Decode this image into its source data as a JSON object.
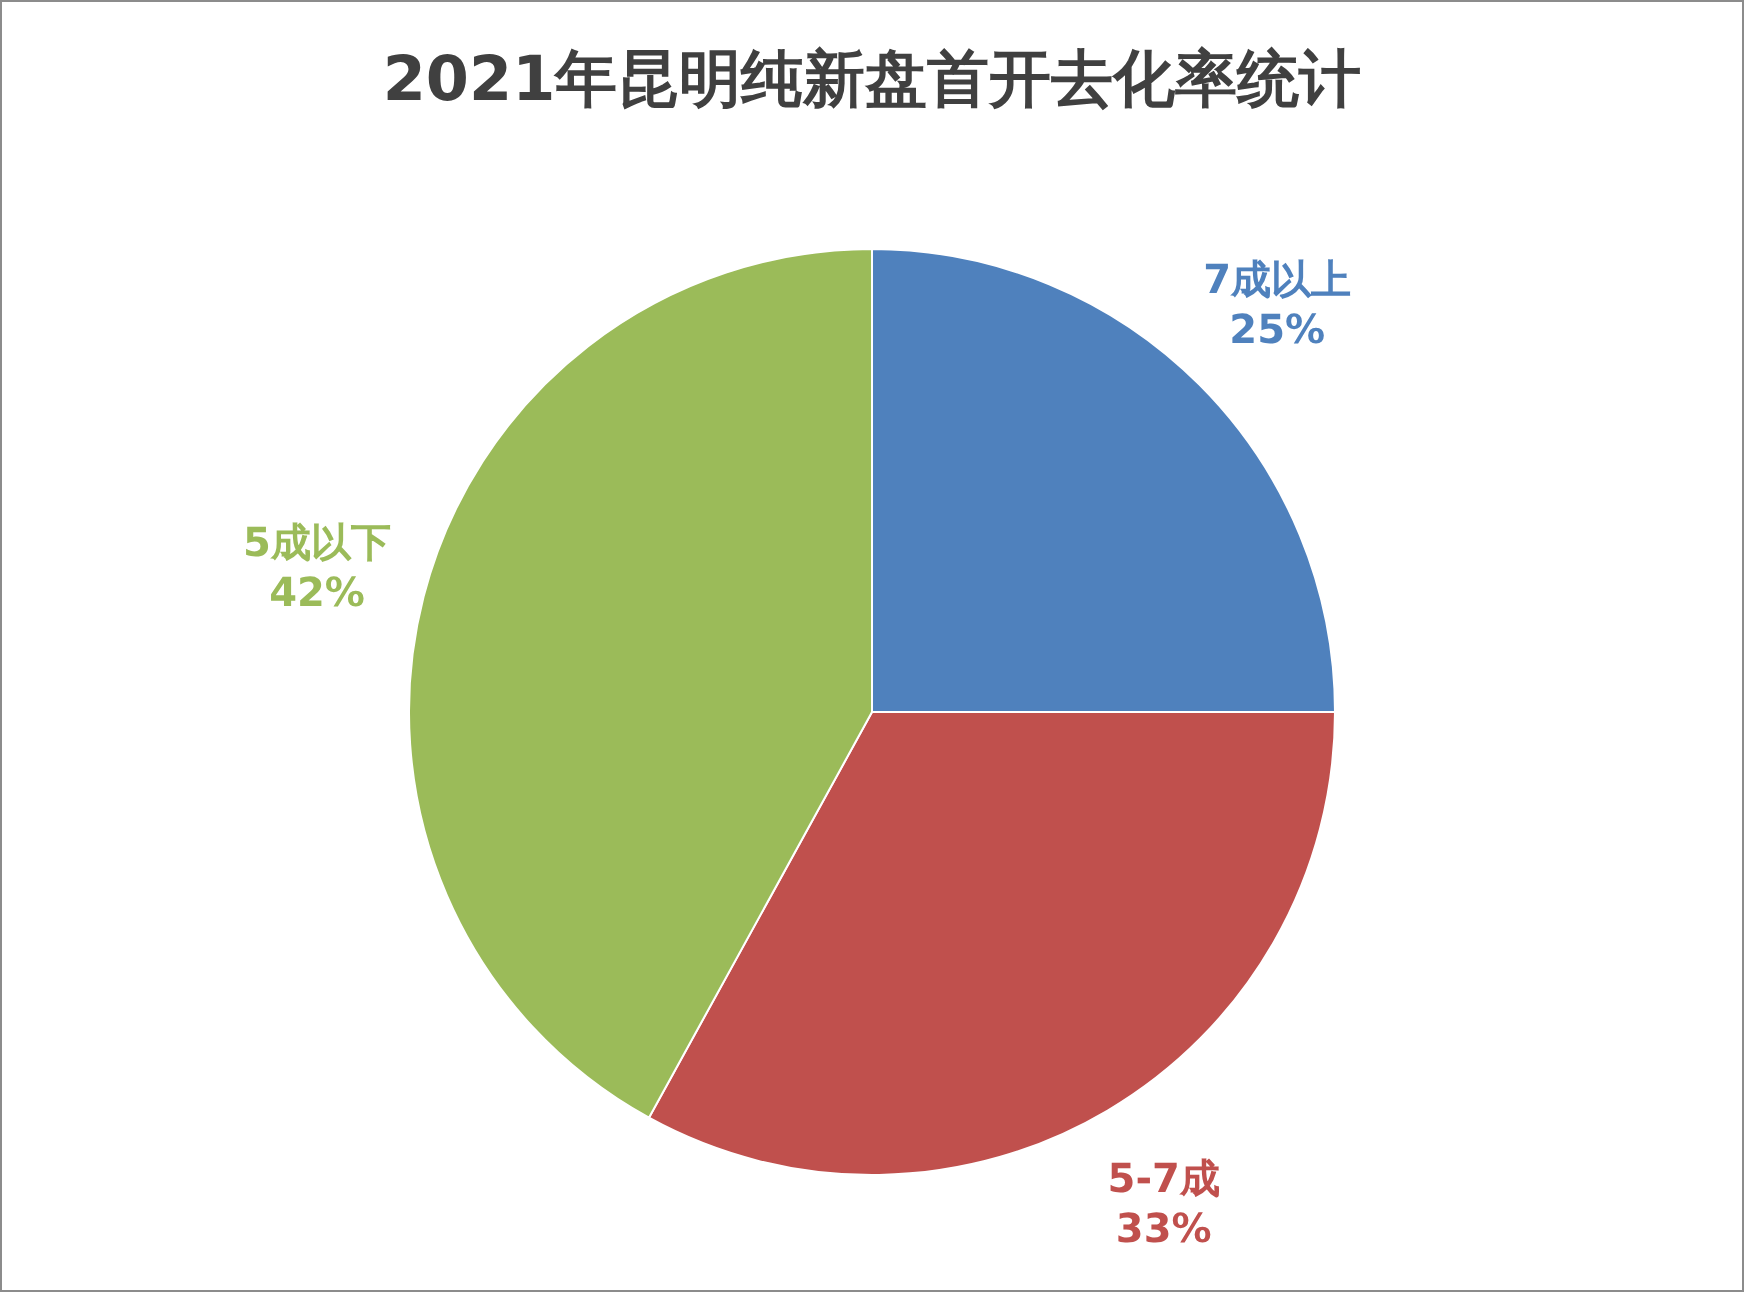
{
  "chart_data": {
    "type": "pie",
    "title": "2021年昆明纯新盘首开去化率统计",
    "categories": [
      "7成以上",
      "5-7成",
      "5成以下"
    ],
    "values": [
      25,
      33,
      42
    ],
    "value_labels": [
      "25%",
      "33%",
      "42%"
    ],
    "colors": [
      "#4f81bd",
      "#c0504d",
      "#9bbb59"
    ],
    "legend": false
  }
}
